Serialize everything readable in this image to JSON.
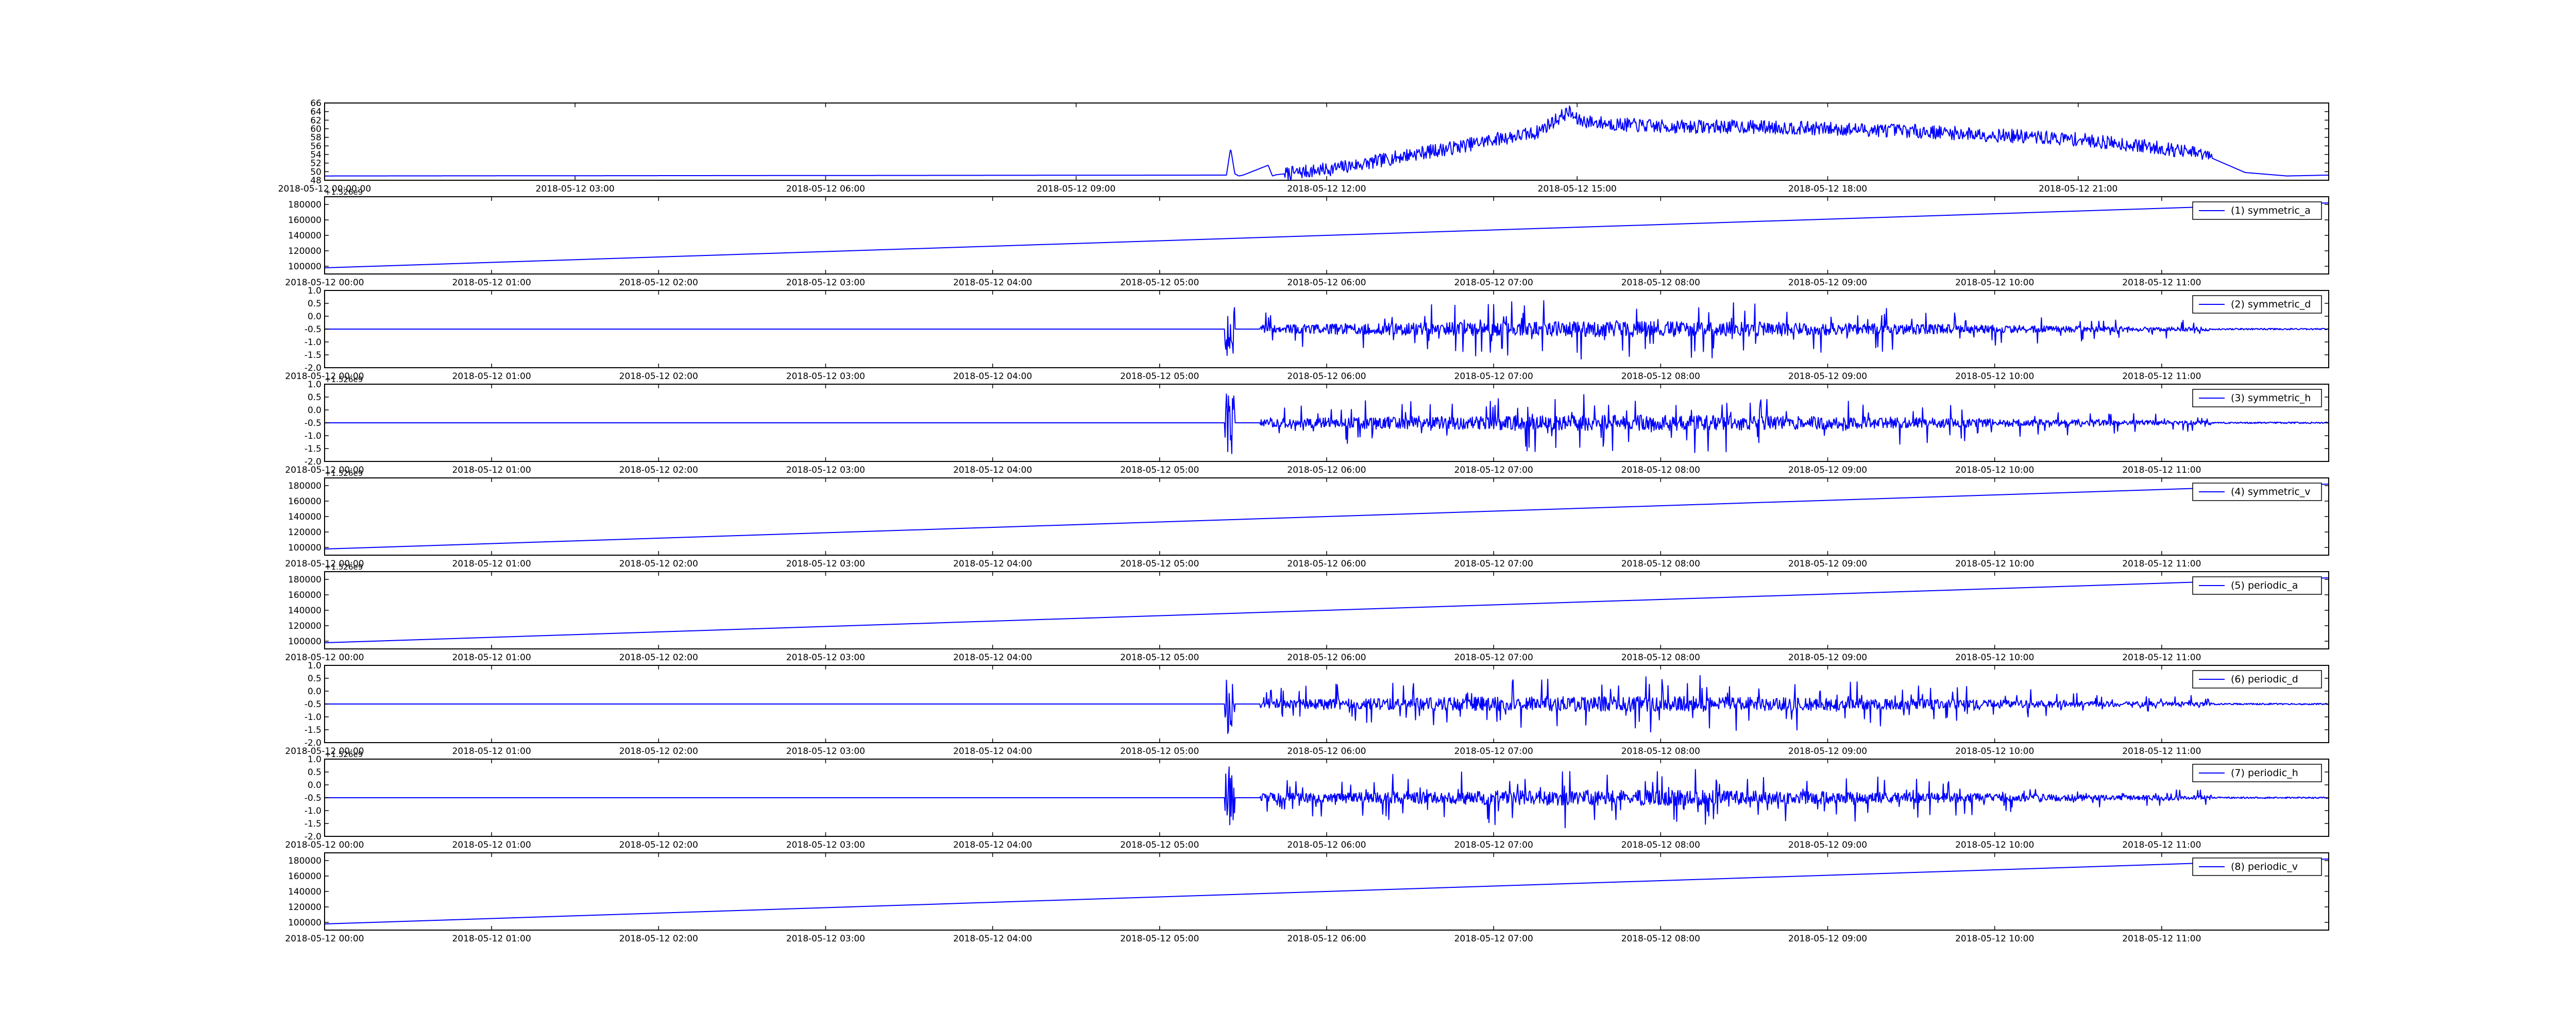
{
  "figure": {
    "line_color": "#0000ff",
    "background": "#ffffff",
    "axis_color": "#000000"
  },
  "chart_data": [
    {
      "type": "line",
      "panel": 0,
      "ylim": [
        48,
        66
      ],
      "yticks": [
        "48",
        "50",
        "52",
        "54",
        "56",
        "58",
        "60",
        "62",
        "64",
        "66"
      ],
      "offset_text": "",
      "xlim": [
        "2018-05-12 00:00:00",
        "2018-05-12 24:00:00"
      ],
      "xtick_labels": [
        "2018-05-12 00:00:00",
        "2018-05-12 03:00",
        "2018-05-12 06:00",
        "2018-05-12 09:00",
        "2018-05-12 12:00",
        "2018-05-12 15:00",
        "2018-05-12 18:00",
        "2018-05-12 21:00"
      ],
      "series": [
        {
          "name": "",
          "pattern": "signal",
          "x_hours": [
            0,
            10.8,
            10.85,
            10.9,
            10.95,
            11.0,
            11.3,
            11.35,
            11.4,
            11.5,
            12.0,
            12.5,
            13.0,
            13.5,
            14.0,
            14.5,
            14.9,
            15.0,
            15.2,
            15.5,
            16.0,
            17.0,
            18.0,
            19.0,
            20.0,
            21.0,
            22.0,
            22.5,
            23.0,
            23.5,
            24.0
          ],
          "y": [
            49.0,
            49.2,
            55.5,
            49.5,
            49.0,
            49.2,
            51.5,
            49.0,
            49.3,
            49.5,
            50.5,
            52.0,
            54.0,
            55.5,
            57.5,
            59.0,
            64.0,
            62.0,
            61.5,
            61.0,
            60.5,
            60.5,
            60.0,
            59.5,
            58.5,
            57.5,
            55.5,
            54.0,
            49.8,
            49.0,
            49.2
          ],
          "noise_amplitude": 1.6,
          "noise_start_hour": 11.5,
          "noise_end_hour": 22.6
        }
      ]
    },
    {
      "type": "line",
      "panel": 1,
      "ylim": [
        90000,
        190000
      ],
      "yticks": [
        "100000",
        "120000",
        "140000",
        "160000",
        "180000"
      ],
      "offset_text": "+1.526e9",
      "xlim": [
        "2018-05-12 00:00",
        "2018-05-12 12:00"
      ],
      "xtick_labels": [
        "2018-05-12 00:00",
        "2018-05-12 01:00",
        "2018-05-12 02:00",
        "2018-05-12 03:00",
        "2018-05-12 04:00",
        "2018-05-12 05:00",
        "2018-05-12 06:00",
        "2018-05-12 07:00",
        "2018-05-12 08:00",
        "2018-05-12 09:00",
        "2018-05-12 10:00",
        "2018-05-12 11:00"
      ],
      "series": [
        {
          "name": "(1) symmetric_a",
          "pattern": "ramp",
          "x_hours": [
            0,
            12
          ],
          "y": [
            98000,
            182000
          ]
        }
      ],
      "legend_position": "upper-right"
    },
    {
      "type": "line",
      "panel": 2,
      "ylim": [
        -2.0,
        1.0
      ],
      "yticks": [
        "-2.0",
        "-1.5",
        "-1.0",
        "-0.5",
        "0.0",
        "0.5",
        "1.0"
      ],
      "offset_text": "",
      "xlim": [
        "2018-05-12 00:00",
        "2018-05-12 12:00"
      ],
      "xtick_labels": [
        "2018-05-12 00:00",
        "2018-05-12 01:00",
        "2018-05-12 02:00",
        "2018-05-12 03:00",
        "2018-05-12 04:00",
        "2018-05-12 05:00",
        "2018-05-12 06:00",
        "2018-05-12 07:00",
        "2018-05-12 08:00",
        "2018-05-12 09:00",
        "2018-05-12 10:00",
        "2018-05-12 11:00"
      ],
      "series": [
        {
          "name": "(2) symmetric_d",
          "pattern": "detail",
          "baseline": -0.5,
          "burst_hour": 5.42,
          "active_start_hour": 5.6,
          "active_end_hour": 11.3,
          "peak_hour": 7.8,
          "max_amplitude": 1.2
        }
      ],
      "legend_position": "upper-right"
    },
    {
      "type": "line",
      "panel": 3,
      "ylim": [
        -2.0,
        1.0
      ],
      "yticks": [
        "-2.0",
        "-1.5",
        "-1.0",
        "-0.5",
        "0.0",
        "0.5",
        "1.0"
      ],
      "offset_text": "+1.526e9",
      "xlim": [
        "2018-05-12 00:00",
        "2018-05-12 12:00"
      ],
      "xtick_labels": [
        "2018-05-12 00:00",
        "2018-05-12 01:00",
        "2018-05-12 02:00",
        "2018-05-12 03:00",
        "2018-05-12 04:00",
        "2018-05-12 05:00",
        "2018-05-12 06:00",
        "2018-05-12 07:00",
        "2018-05-12 08:00",
        "2018-05-12 09:00",
        "2018-05-12 10:00",
        "2018-05-12 11:00"
      ],
      "series": [
        {
          "name": "(3) symmetric_h",
          "pattern": "detail",
          "baseline": -0.5,
          "burst_hour": 5.42,
          "active_start_hour": 5.6,
          "active_end_hour": 11.3,
          "peak_hour": 7.8,
          "max_amplitude": 1.2
        }
      ],
      "legend_position": "upper-right"
    },
    {
      "type": "line",
      "panel": 4,
      "ylim": [
        90000,
        190000
      ],
      "yticks": [
        "100000",
        "120000",
        "140000",
        "160000",
        "180000"
      ],
      "offset_text": "+1.526e9",
      "xlim": [
        "2018-05-12 00:00",
        "2018-05-12 12:00"
      ],
      "xtick_labels": [
        "2018-05-12 00:00",
        "2018-05-12 01:00",
        "2018-05-12 02:00",
        "2018-05-12 03:00",
        "2018-05-12 04:00",
        "2018-05-12 05:00",
        "2018-05-12 06:00",
        "2018-05-12 07:00",
        "2018-05-12 08:00",
        "2018-05-12 09:00",
        "2018-05-12 10:00",
        "2018-05-12 11:00"
      ],
      "series": [
        {
          "name": "(4) symmetric_v",
          "pattern": "ramp",
          "x_hours": [
            0,
            12
          ],
          "y": [
            98000,
            182000
          ]
        }
      ],
      "legend_position": "upper-right"
    },
    {
      "type": "line",
      "panel": 5,
      "ylim": [
        90000,
        190000
      ],
      "yticks": [
        "100000",
        "120000",
        "140000",
        "160000",
        "180000"
      ],
      "offset_text": "+1.526e9",
      "xlim": [
        "2018-05-12 00:00",
        "2018-05-12 12:00"
      ],
      "xtick_labels": [
        "2018-05-12 00:00",
        "2018-05-12 01:00",
        "2018-05-12 02:00",
        "2018-05-12 03:00",
        "2018-05-12 04:00",
        "2018-05-12 05:00",
        "2018-05-12 06:00",
        "2018-05-12 07:00",
        "2018-05-12 08:00",
        "2018-05-12 09:00",
        "2018-05-12 10:00",
        "2018-05-12 11:00"
      ],
      "series": [
        {
          "name": "(5) periodic_a",
          "pattern": "ramp",
          "x_hours": [
            0,
            12
          ],
          "y": [
            98000,
            182000
          ]
        }
      ],
      "legend_position": "upper-right"
    },
    {
      "type": "line",
      "panel": 6,
      "ylim": [
        -2.0,
        1.0
      ],
      "yticks": [
        "-2.0",
        "-1.5",
        "-1.0",
        "-0.5",
        "0.0",
        "0.5",
        "1.0"
      ],
      "offset_text": "",
      "xlim": [
        "2018-05-12 00:00",
        "2018-05-12 12:00"
      ],
      "xtick_labels": [
        "2018-05-12 00:00",
        "2018-05-12 01:00",
        "2018-05-12 02:00",
        "2018-05-12 03:00",
        "2018-05-12 04:00",
        "2018-05-12 05:00",
        "2018-05-12 06:00",
        "2018-05-12 07:00",
        "2018-05-12 08:00",
        "2018-05-12 09:00",
        "2018-05-12 10:00",
        "2018-05-12 11:00"
      ],
      "series": [
        {
          "name": "(6) periodic_d",
          "pattern": "detail",
          "baseline": -0.5,
          "burst_hour": 5.42,
          "active_start_hour": 5.6,
          "active_end_hour": 11.3,
          "peak_hour": 7.8,
          "max_amplitude": 1.2
        }
      ],
      "legend_position": "upper-right"
    },
    {
      "type": "line",
      "panel": 7,
      "ylim": [
        -2.0,
        1.0
      ],
      "yticks": [
        "-2.0",
        "-1.5",
        "-1.0",
        "-0.5",
        "0.0",
        "0.5",
        "1.0"
      ],
      "offset_text": "+1.526e9",
      "xlim": [
        "2018-05-12 00:00",
        "2018-05-12 12:00"
      ],
      "xtick_labels": [
        "2018-05-12 00:00",
        "2018-05-12 01:00",
        "2018-05-12 02:00",
        "2018-05-12 03:00",
        "2018-05-12 04:00",
        "2018-05-12 05:00",
        "2018-05-12 06:00",
        "2018-05-12 07:00",
        "2018-05-12 08:00",
        "2018-05-12 09:00",
        "2018-05-12 10:00",
        "2018-05-12 11:00"
      ],
      "series": [
        {
          "name": "(7) periodic_h",
          "pattern": "detail",
          "baseline": -0.5,
          "burst_hour": 5.42,
          "active_start_hour": 5.6,
          "active_end_hour": 11.3,
          "peak_hour": 7.8,
          "max_amplitude": 1.2
        }
      ],
      "legend_position": "upper-right"
    },
    {
      "type": "line",
      "panel": 8,
      "ylim": [
        90000,
        190000
      ],
      "yticks": [
        "100000",
        "120000",
        "140000",
        "160000",
        "180000"
      ],
      "offset_text": "",
      "xlim": [
        "2018-05-12 00:00",
        "2018-05-12 12:00"
      ],
      "xtick_labels": [
        "2018-05-12 00:00",
        "2018-05-12 01:00",
        "2018-05-12 02:00",
        "2018-05-12 03:00",
        "2018-05-12 04:00",
        "2018-05-12 05:00",
        "2018-05-12 06:00",
        "2018-05-12 07:00",
        "2018-05-12 08:00",
        "2018-05-12 09:00",
        "2018-05-12 10:00",
        "2018-05-12 11:00"
      ],
      "series": [
        {
          "name": "(8) periodic_v",
          "pattern": "ramp",
          "x_hours": [
            0,
            12
          ],
          "y": [
            98000,
            182000
          ]
        }
      ],
      "legend_position": "upper-right"
    }
  ]
}
